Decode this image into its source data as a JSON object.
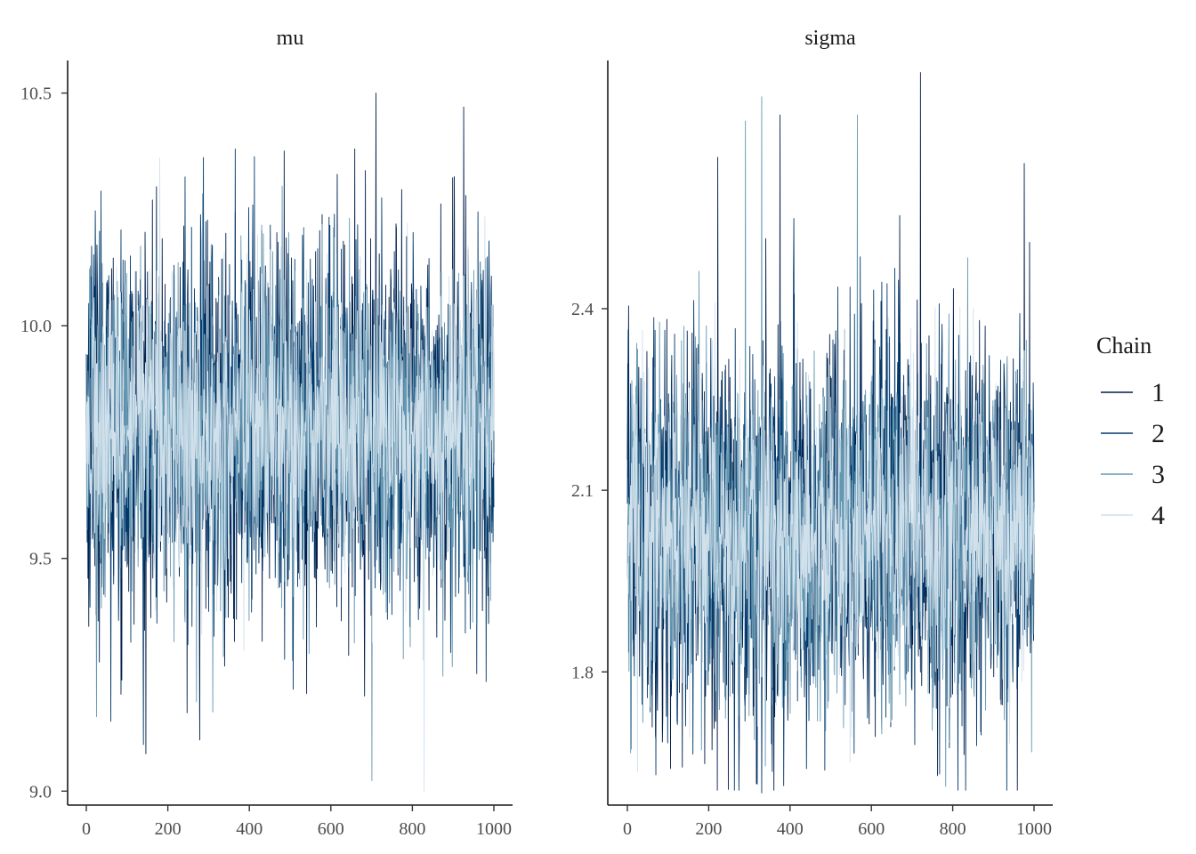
{
  "chart_data": [
    {
      "type": "line",
      "title": "mu",
      "xlabel": "",
      "ylabel": "",
      "xlim": [
        0,
        1000
      ],
      "ylim": [
        8.97,
        10.57
      ],
      "x_ticks": [
        0,
        200,
        400,
        600,
        800,
        1000
      ],
      "x_tick_labels": [
        "0",
        "200",
        "400",
        "600",
        "800",
        "1000"
      ],
      "y_ticks": [
        9.0,
        9.5,
        10.0,
        10.5
      ],
      "y_tick_labels": [
        "9.0",
        "9.5",
        "10.0",
        "10.5"
      ],
      "series": [
        {
          "name": "1",
          "n_iter": 1000,
          "center": 9.78,
          "spread": 0.2,
          "extremes": [
            [
              278,
              9.11
            ],
            [
              710,
              10.5
            ],
            [
              925,
              10.47
            ],
            [
              540,
              9.21
            ]
          ]
        },
        {
          "name": "2",
          "n_iter": 1000,
          "center": 9.78,
          "spread": 0.2,
          "extremes": [
            [
              140,
              9.1
            ],
            [
              365,
              10.38
            ],
            [
              60,
              9.15
            ]
          ]
        },
        {
          "name": "3",
          "n_iter": 1000,
          "center": 9.78,
          "spread": 0.19,
          "extremes": [
            [
              25,
              9.16
            ],
            [
              310,
              9.17
            ],
            [
              480,
              10.3
            ]
          ]
        },
        {
          "name": "4",
          "n_iter": 1000,
          "center": 9.78,
          "spread": 0.16,
          "extremes": [
            [
              828,
              9.0
            ],
            [
              180,
              10.36
            ]
          ]
        }
      ]
    },
    {
      "type": "line",
      "title": "sigma",
      "xlabel": "",
      "ylabel": "",
      "xlim": [
        0,
        1000
      ],
      "ylim": [
        1.58,
        2.81
      ],
      "x_ticks": [
        0,
        200,
        400,
        600,
        800,
        1000
      ],
      "x_tick_labels": [
        "0",
        "200",
        "400",
        "600",
        "800",
        "1000"
      ],
      "y_ticks": [
        1.8,
        2.1,
        2.4
      ],
      "y_tick_labels": [
        "1.8",
        "2.1",
        "2.4"
      ],
      "series": [
        {
          "name": "1",
          "n_iter": 1000,
          "center": 2.03,
          "spread": 0.16,
          "extremes": [
            [
              720,
              2.79
            ],
            [
              375,
              2.72
            ],
            [
              222,
              2.65
            ],
            [
              975,
              2.64
            ]
          ]
        },
        {
          "name": "2",
          "n_iter": 1000,
          "center": 2.03,
          "spread": 0.16,
          "extremes": [
            [
              330,
              1.6
            ],
            [
              440,
              1.64
            ],
            [
              70,
              1.63
            ]
          ]
        },
        {
          "name": "3",
          "n_iter": 1000,
          "center": 2.03,
          "spread": 0.15,
          "extremes": [
            [
              330,
              2.75
            ],
            [
              565,
              2.72
            ],
            [
              290,
              2.71
            ]
          ]
        },
        {
          "name": "4",
          "n_iter": 1000,
          "center": 2.03,
          "spread": 0.12,
          "extremes": [
            [
              850,
              2.4
            ],
            [
              120,
              1.75
            ]
          ]
        }
      ]
    }
  ],
  "legend": {
    "title": "Chain",
    "position": "right",
    "entries": [
      "1",
      "2",
      "3",
      "4"
    ]
  },
  "colors": {
    "chain_1": "#011f4b",
    "chain_2": "#03396c",
    "chain_3": "#6497b1",
    "chain_4": "#d1e1ec"
  },
  "grid": false
}
